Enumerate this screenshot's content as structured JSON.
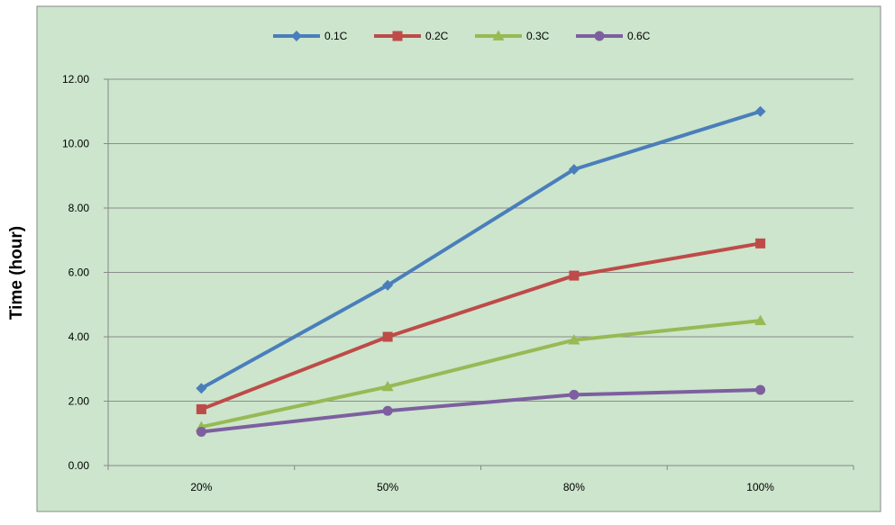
{
  "chart_data": {
    "type": "line",
    "title": "",
    "xlabel": "",
    "ylabel": "Time (hour)",
    "categories": [
      "20%",
      "50%",
      "80%",
      "100%"
    ],
    "ylim": [
      0,
      12
    ],
    "y_ticks": [
      "0.00",
      "2.00",
      "4.00",
      "6.00",
      "8.00",
      "10.00",
      "12.00"
    ],
    "grid": true,
    "legend_position": "top-center",
    "plot_background": "#cce5cc",
    "series": [
      {
        "name": "0.1C",
        "color": "#4a7ebb",
        "marker": "diamond",
        "values": [
          2.4,
          5.6,
          9.2,
          11.0
        ]
      },
      {
        "name": "0.2C",
        "color": "#be4b48",
        "marker": "square",
        "values": [
          1.75,
          4.0,
          5.9,
          6.9
        ]
      },
      {
        "name": "0.3C",
        "color": "#98b954",
        "marker": "triangle",
        "values": [
          1.2,
          2.45,
          3.9,
          4.5
        ]
      },
      {
        "name": "0.6C",
        "color": "#7d5fa0",
        "marker": "circle",
        "values": [
          1.05,
          1.7,
          2.2,
          2.35
        ]
      }
    ]
  }
}
